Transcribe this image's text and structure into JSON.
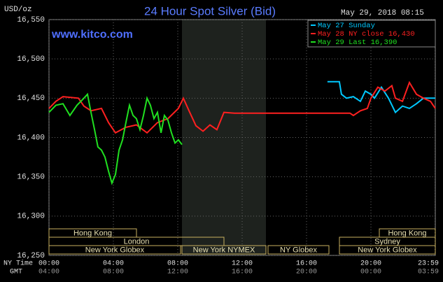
{
  "chart_data": {
    "type": "line",
    "title": "24 Hour Spot Silver (Bid)",
    "y_unit": "USD/oz",
    "timestamp": "May 29, 2018 08:15",
    "source": "www.kitco.com",
    "x_row_labels": [
      "NY Time",
      "GMT"
    ],
    "xlim": [
      0,
      24
    ],
    "xticks": [
      {
        "value": 0,
        "label": "00:00"
      },
      {
        "value": 4,
        "label": "04:00"
      },
      {
        "value": 8,
        "label": "08:00"
      },
      {
        "value": 12,
        "label": "12:00"
      },
      {
        "value": 16,
        "label": "16:00"
      },
      {
        "value": 20,
        "label": "20:00"
      },
      {
        "value": 23.98,
        "label": "23:59"
      }
    ],
    "gmt_labels": [
      "04:00",
      "08:00",
      "12:00",
      "16:00",
      "20:00",
      "00:00",
      "03:59"
    ],
    "ylim": [
      16.25,
      16.55
    ],
    "yticks": [
      {
        "value": 16.25,
        "label": "16,250"
      },
      {
        "value": 16.3,
        "label": "16,300"
      },
      {
        "value": 16.35,
        "label": "16,350"
      },
      {
        "value": 16.4,
        "label": "16,400"
      },
      {
        "value": 16.45,
        "label": "16,450"
      },
      {
        "value": 16.5,
        "label": "16,500"
      },
      {
        "value": 16.55,
        "label": "16,550"
      }
    ],
    "grid": true,
    "sessions": [
      "Hong Kong",
      "London",
      "New York Globex",
      "New York NYMEX",
      "NY Globex",
      "Hong Kong",
      "Sydney",
      "New York Globex"
    ],
    "series": [
      {
        "name": "May 27 Sunday",
        "color": "#00c8ff",
        "x": [
          17.3,
          18.04,
          18.17,
          18.48,
          18.91,
          19.35,
          19.65,
          20.0,
          20.22,
          20.65,
          21.09,
          21.52,
          21.96,
          22.39,
          22.83,
          23.26,
          24.0
        ],
        "values": [
          16.471,
          16.471,
          16.455,
          16.45,
          16.452,
          16.446,
          16.459,
          16.455,
          16.45,
          16.464,
          16.45,
          16.432,
          16.44,
          16.437,
          16.443,
          16.45,
          16.45
        ]
      },
      {
        "name": "May 28 NY close 16,430",
        "color": "#ff2020",
        "x": [
          0,
          0.43,
          0.87,
          1.83,
          2.17,
          2.61,
          3.26,
          3.7,
          4.13,
          4.78,
          5.43,
          6.09,
          6.74,
          7.39,
          8.04,
          8.35,
          8.7,
          9.13,
          9.57,
          10.0,
          10.43,
          10.87,
          11.52,
          18.7,
          18.91,
          19.35,
          19.78,
          20.0,
          20.43,
          20.87,
          21.3,
          21.52,
          21.96,
          22.39,
          22.83,
          23.26,
          23.7,
          24.0
        ],
        "values": [
          16.437,
          16.446,
          16.452,
          16.45,
          16.44,
          16.434,
          16.437,
          16.419,
          16.406,
          16.413,
          16.416,
          16.406,
          16.419,
          16.424,
          16.437,
          16.45,
          16.434,
          16.415,
          16.408,
          16.416,
          16.41,
          16.432,
          16.431,
          16.431,
          16.428,
          16.434,
          16.437,
          16.45,
          16.464,
          16.459,
          16.466,
          16.45,
          16.446,
          16.47,
          16.455,
          16.45,
          16.446,
          16.437
        ]
      },
      {
        "name": "May 29 Last 16,390",
        "color": "#20e020",
        "x": [
          0,
          0.43,
          0.87,
          1.3,
          1.74,
          2.17,
          2.39,
          2.61,
          2.83,
          3.04,
          3.26,
          3.48,
          3.7,
          3.91,
          4.13,
          4.35,
          4.57,
          4.78,
          5.0,
          5.22,
          5.43,
          5.65,
          5.87,
          6.09,
          6.3,
          6.52,
          6.74,
          6.96,
          7.17,
          7.39,
          7.61,
          7.83,
          8.04,
          8.26
        ],
        "values": [
          16.432,
          16.441,
          16.443,
          16.428,
          16.441,
          16.45,
          16.455,
          16.432,
          16.41,
          16.388,
          16.384,
          16.375,
          16.357,
          16.342,
          16.353,
          16.384,
          16.397,
          16.419,
          16.441,
          16.428,
          16.424,
          16.41,
          16.428,
          16.45,
          16.441,
          16.424,
          16.432,
          16.406,
          16.428,
          16.422,
          16.406,
          16.393,
          16.397,
          16.391
        ]
      }
    ]
  }
}
